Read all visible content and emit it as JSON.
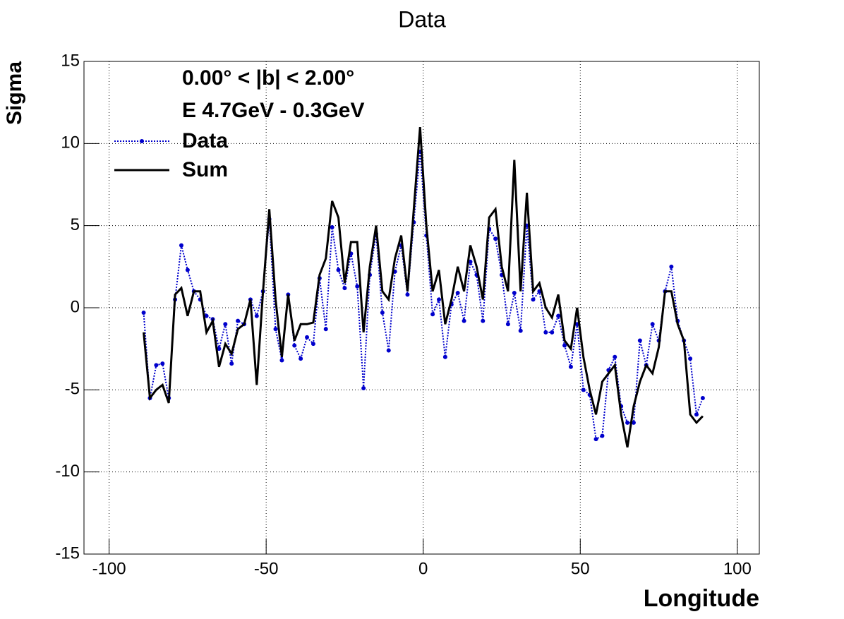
{
  "chart_data": {
    "type": "line",
    "title": "Data",
    "x_label": "Longitude",
    "y_label": "Sigma",
    "annotations": [
      "0.00° < |b| < 2.00°",
      "E 4.7GeV - 0.3GeV"
    ],
    "x": [
      -89,
      -87,
      -85,
      -83,
      -81,
      -79,
      -77,
      -75,
      -73,
      -71,
      -69,
      -67,
      -65,
      -63,
      -61,
      -59,
      -57,
      -55,
      -53,
      -51,
      -49,
      -47,
      -45,
      -43,
      -41,
      -39,
      -37,
      -35,
      -33,
      -31,
      -29,
      -27,
      -25,
      -23,
      -21,
      -19,
      -17,
      -15,
      -13,
      -11,
      -9,
      -7,
      -5,
      -3,
      -1,
      1,
      3,
      5,
      7,
      9,
      11,
      13,
      15,
      17,
      19,
      21,
      23,
      25,
      27,
      29,
      31,
      33,
      35,
      37,
      39,
      41,
      43,
      45,
      47,
      49,
      51,
      53,
      55,
      57,
      59,
      61,
      63,
      65,
      67,
      69,
      71,
      73,
      75,
      77,
      79,
      81,
      83,
      85,
      87,
      89
    ],
    "series": [
      {
        "name": "Data",
        "color": "#0000cc",
        "style": "dotted",
        "markers": true,
        "values": [
          -0.3,
          -5.5,
          -3.5,
          -3.4,
          -5.5,
          0.5,
          3.8,
          2.3,
          1.0,
          0.5,
          -0.5,
          -0.7,
          -2.5,
          -1.0,
          -3.4,
          -0.8,
          -1.0,
          0.5,
          -0.5,
          1.0,
          5.4,
          -1.3,
          -3.2,
          0.8,
          -2.3,
          -3.1,
          -1.8,
          -2.2,
          1.8,
          -1.3,
          4.9,
          2.3,
          1.2,
          3.3,
          1.3,
          -4.9,
          2.0,
          4.5,
          -0.3,
          -2.6,
          2.2,
          3.8,
          0.8,
          5.2,
          9.5,
          4.4,
          -0.4,
          0.5,
          -3.0,
          0.2,
          0.9,
          -0.8,
          2.8,
          2.0,
          -0.8,
          4.8,
          4.2,
          2.0,
          -1.0,
          0.9,
          -1.4,
          5.0,
          0.5,
          1.0,
          -1.5,
          -1.5,
          -0.5,
          -2.3,
          -3.6,
          -1.0,
          -5.0,
          -5.3,
          -8.0,
          -7.8,
          -3.8,
          -3.0,
          -6.0,
          -7.0,
          -7.0,
          -2.0,
          -3.5,
          -1.0,
          -2.0,
          1.0,
          2.5,
          -0.8,
          -2.0,
          -3.1,
          -6.5,
          -5.5
        ]
      },
      {
        "name": "Sum",
        "color": "#000000",
        "style": "solid",
        "markers": false,
        "values": [
          -1.5,
          -5.5,
          -5.0,
          -4.7,
          -5.8,
          0.8,
          1.2,
          -0.5,
          1.0,
          1.0,
          -1.5,
          -0.8,
          -3.6,
          -2.2,
          -2.8,
          -1.3,
          -1.0,
          0.5,
          -4.7,
          1.0,
          6.0,
          0.5,
          -3.0,
          0.8,
          -2.0,
          -1.0,
          -1.0,
          -0.9,
          2.0,
          3.0,
          6.5,
          5.5,
          1.5,
          4.0,
          4.0,
          -1.5,
          2.5,
          5.0,
          1.0,
          0.5,
          3.0,
          4.4,
          1.0,
          6.0,
          11.0,
          5.0,
          1.0,
          2.3,
          -1.0,
          0.5,
          2.5,
          1.0,
          3.8,
          2.5,
          0.5,
          5.5,
          6.0,
          2.5,
          1.0,
          9.0,
          1.0,
          7.0,
          1.0,
          1.5,
          0.0,
          -0.6,
          0.8,
          -2.0,
          -2.5,
          0.0,
          -3.0,
          -5.0,
          -6.5,
          -4.5,
          -4.0,
          -3.5,
          -6.5,
          -8.5,
          -6.0,
          -4.5,
          -3.5,
          -4.0,
          -2.4,
          1.0,
          1.0,
          -1.0,
          -2.0,
          -6.5,
          -7.0,
          -6.6
        ]
      }
    ],
    "xlim": [
      -108,
      107
    ],
    "ylim": [
      -15,
      15
    ],
    "xticks": [
      -100,
      -50,
      0,
      50,
      100
    ],
    "yticks": [
      -15,
      -10,
      -5,
      0,
      5,
      10,
      15
    ],
    "grid": true
  }
}
